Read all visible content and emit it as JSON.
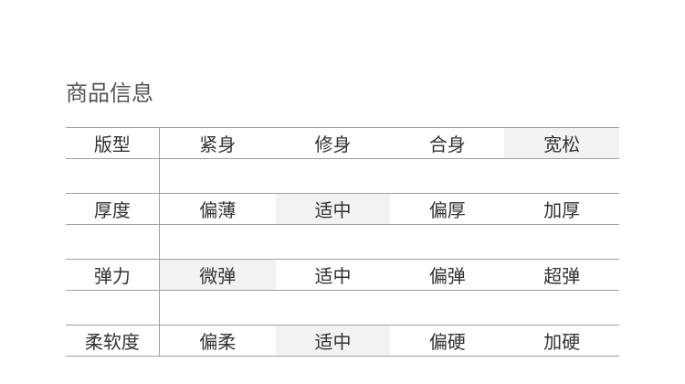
{
  "title": "商品信息",
  "rows": [
    {
      "label": "版型",
      "options": [
        "紧身",
        "修身",
        "合身",
        "宽松"
      ],
      "selected": 3
    },
    {
      "label": "厚度",
      "options": [
        "偏薄",
        "适中",
        "偏厚",
        "加厚"
      ],
      "selected": 1
    },
    {
      "label": "弹力",
      "options": [
        "微弹",
        "适中",
        "偏弹",
        "超弹"
      ],
      "selected": 0
    },
    {
      "label": "柔软度",
      "options": [
        "偏柔",
        "适中",
        "偏硬",
        "加硬"
      ],
      "selected": 1
    }
  ],
  "colors": {
    "selected_bg": "#f2f2f2",
    "line": "#a0a0a0",
    "text": "#333333"
  }
}
